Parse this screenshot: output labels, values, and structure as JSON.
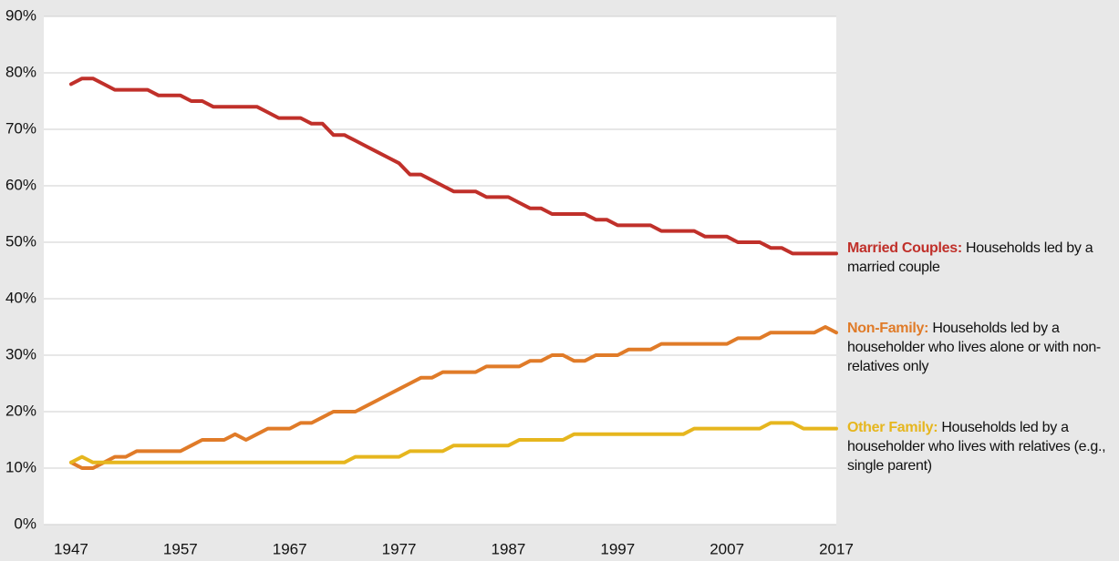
{
  "chart_data": {
    "type": "line",
    "x": [
      1947,
      1948,
      1949,
      1950,
      1951,
      1952,
      1953,
      1954,
      1955,
      1956,
      1957,
      1958,
      1959,
      1960,
      1961,
      1962,
      1963,
      1964,
      1965,
      1966,
      1967,
      1968,
      1969,
      1970,
      1971,
      1972,
      1973,
      1974,
      1975,
      1976,
      1977,
      1978,
      1979,
      1980,
      1981,
      1982,
      1983,
      1984,
      1985,
      1986,
      1987,
      1988,
      1989,
      1990,
      1991,
      1992,
      1993,
      1994,
      1995,
      1996,
      1997,
      1998,
      1999,
      2000,
      2001,
      2002,
      2003,
      2004,
      2005,
      2006,
      2007,
      2008,
      2009,
      2010,
      2011,
      2012,
      2013,
      2014,
      2015,
      2016,
      2017
    ],
    "series": [
      {
        "name": "Married Couples:",
        "description": "Households led by a married couple",
        "color": "#c0302a",
        "values": [
          78,
          79,
          79,
          78,
          77,
          77,
          77,
          77,
          76,
          76,
          76,
          75,
          75,
          74,
          74,
          74,
          74,
          74,
          73,
          72,
          72,
          72,
          71,
          71,
          69,
          69,
          68,
          67,
          66,
          65,
          64,
          62,
          62,
          61,
          60,
          59,
          59,
          59,
          58,
          58,
          58,
          57,
          56,
          56,
          55,
          55,
          55,
          55,
          54,
          54,
          53,
          53,
          53,
          53,
          52,
          52,
          52,
          52,
          51,
          51,
          51,
          50,
          50,
          50,
          49,
          49,
          48,
          48,
          48,
          48,
          48
        ]
      },
      {
        "name": "Non-Family:",
        "description": "Households led by a householder who lives alone or with non-relatives only",
        "color": "#e07b28",
        "values": [
          11,
          10,
          10,
          11,
          12,
          12,
          13,
          13,
          13,
          13,
          13,
          14,
          15,
          15,
          15,
          16,
          15,
          16,
          17,
          17,
          17,
          18,
          18,
          19,
          20,
          20,
          20,
          21,
          22,
          23,
          24,
          25,
          26,
          26,
          27,
          27,
          27,
          27,
          28,
          28,
          28,
          28,
          29,
          29,
          30,
          30,
          29,
          29,
          30,
          30,
          30,
          31,
          31,
          31,
          32,
          32,
          32,
          32,
          32,
          32,
          32,
          33,
          33,
          33,
          34,
          34,
          34,
          34,
          34,
          35,
          34
        ]
      },
      {
        "name": "Other Family:",
        "description": "Households led by a householder who lives with relatives (e.g., single parent)",
        "color": "#e6b61e",
        "values": [
          11,
          12,
          11,
          11,
          11,
          11,
          11,
          11,
          11,
          11,
          11,
          11,
          11,
          11,
          11,
          11,
          11,
          11,
          11,
          11,
          11,
          11,
          11,
          11,
          11,
          11,
          12,
          12,
          12,
          12,
          12,
          13,
          13,
          13,
          13,
          14,
          14,
          14,
          14,
          14,
          14,
          15,
          15,
          15,
          15,
          15,
          16,
          16,
          16,
          16,
          16,
          16,
          16,
          16,
          16,
          16,
          16,
          17,
          17,
          17,
          17,
          17,
          17,
          17,
          18,
          18,
          18,
          17,
          17,
          17,
          17
        ]
      }
    ],
    "xlim": [
      1944.5,
      2017
    ],
    "xticks": [
      1947,
      1957,
      1967,
      1977,
      1987,
      1997,
      2007,
      2017
    ],
    "ylim": [
      0,
      90
    ],
    "yticks": [
      {
        "value": 0,
        "label": "0%"
      },
      {
        "value": 10,
        "label": "10%"
      },
      {
        "value": 20,
        "label": "20%"
      },
      {
        "value": 30,
        "label": "30%"
      },
      {
        "value": 40,
        "label": "40%"
      },
      {
        "value": 50,
        "label": "50%"
      },
      {
        "value": 60,
        "label": "60%"
      },
      {
        "value": 70,
        "label": "70%"
      },
      {
        "value": 80,
        "label": "80%"
      },
      {
        "value": 90,
        "label": "90%"
      }
    ],
    "grid": true
  }
}
